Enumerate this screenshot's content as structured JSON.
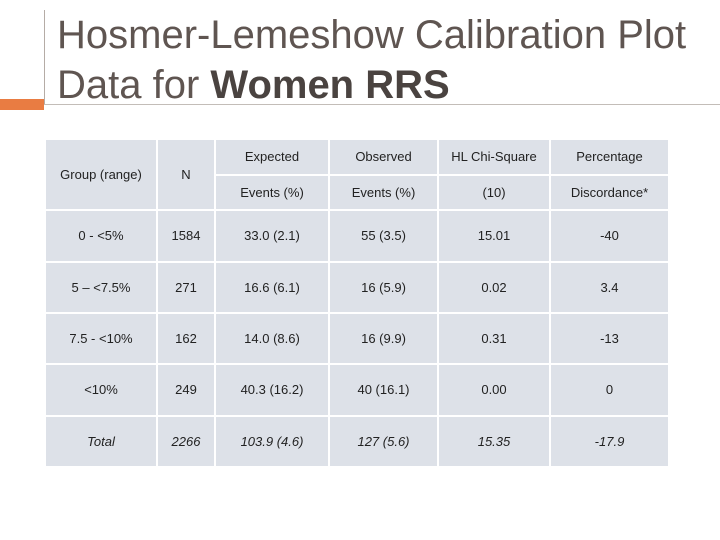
{
  "title": {
    "line1": "Hosmer-Lemeshow Calibration Plot",
    "line2_prefix": "Data for ",
    "line2_bold": "Women RRS"
  },
  "table": {
    "headers": {
      "group": "Group (range)",
      "n": "N",
      "expected_top": "Expected",
      "expected_bottom": "Events (%)",
      "observed_top": "Observed",
      "observed_bottom": "Events (%)",
      "hl_top": "HL Chi-Square",
      "hl_bottom": "(10)",
      "pct_top": "Percentage",
      "pct_bottom": "Discordance*"
    },
    "rows": [
      {
        "group": "0 - <5%",
        "n": "1584",
        "expected": "33.0 (2.1)",
        "observed": "55 (3.5)",
        "hl": "15.01",
        "pct": "-40"
      },
      {
        "group": "5 – <7.5%",
        "n": "271",
        "expected": "16.6 (6.1)",
        "observed": "16 (5.9)",
        "hl": "0.02",
        "pct": "3.4"
      },
      {
        "group": "7.5 - <10%",
        "n": "162",
        "expected": "14.0 (8.6)",
        "observed": "16 (9.9)",
        "hl": "0.31",
        "pct": "-13"
      },
      {
        "group": "<10%",
        "n": "249",
        "expected": "40.3 (16.2)",
        "observed": "40 (16.1)",
        "hl": "0.00",
        "pct": "0"
      },
      {
        "group": "Total",
        "n": "2266",
        "expected": "103.9 (4.6)",
        "observed": "127 (5.6)",
        "hl": "15.35",
        "pct": "-17.9"
      }
    ]
  },
  "colors": {
    "accent": "#e97c42",
    "cell_bg": "#dde1e8",
    "title": "#5f5551"
  }
}
